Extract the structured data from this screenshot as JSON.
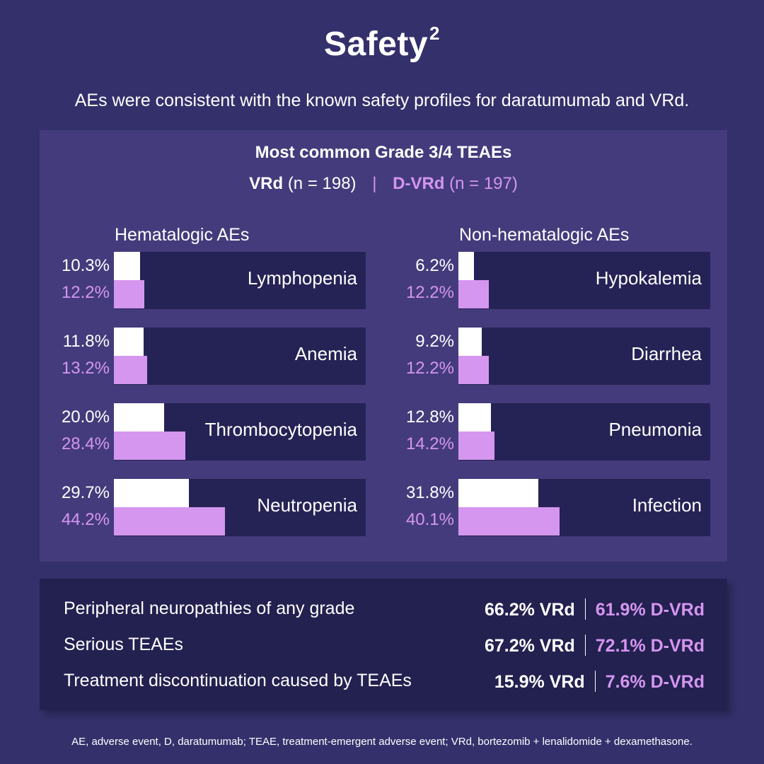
{
  "title": "Safety",
  "title_superscript": "2",
  "subtitle": "AEs were consistent with the known safety profiles for daratumumab and VRd.",
  "colors": {
    "background": "#33306b",
    "panel": "#443b7c",
    "track": "#252355",
    "vrd": "#ffffff",
    "dvrd": "#d596ef"
  },
  "chart_data": {
    "type": "bar",
    "title": "Most common Grade 3/4 TEAEs",
    "xlim": [
      0,
      100
    ],
    "legend": {
      "position": "top",
      "entries": [
        {
          "name": "VRd",
          "detail": "(n = 198)",
          "color": "#ffffff"
        },
        {
          "name": "D-VRd",
          "detail": "(n = 197)",
          "color": "#d596ef"
        }
      ]
    },
    "groups": [
      {
        "title": "Hematologic AEs",
        "categories": [
          "Lymphopenia",
          "Anemia",
          "Thrombocytopenia",
          "Neutropenia"
        ],
        "series": [
          {
            "name": "VRd",
            "values": [
              10.3,
              11.8,
              20.0,
              29.7
            ],
            "labels": [
              "10.3%",
              "11.8%",
              "20.0%",
              "29.7%"
            ]
          },
          {
            "name": "D-VRd",
            "values": [
              12.2,
              13.2,
              28.4,
              44.2
            ],
            "labels": [
              "12.2%",
              "13.2%",
              "28.4%",
              "44.2%"
            ]
          }
        ]
      },
      {
        "title": "Non-hematologic AEs",
        "categories": [
          "Hypokalemia",
          "Diarrhea",
          "Pneumonia",
          "Infection"
        ],
        "series": [
          {
            "name": "VRd",
            "values": [
              6.2,
              9.2,
              12.8,
              31.8
            ],
            "labels": [
              "6.2%",
              "9.2%",
              "12.8%",
              "31.8%"
            ]
          },
          {
            "name": "D-VRd",
            "values": [
              12.2,
              12.2,
              14.2,
              40.1
            ],
            "labels": [
              "12.2%",
              "12.2%",
              "14.2%",
              "40.1%"
            ]
          }
        ]
      }
    ]
  },
  "panel": {
    "title": "Most common Grade 3/4 TEAEs",
    "legend_vrd": "VRd",
    "legend_vrd_n": "(n = 198)",
    "legend_sep": "|",
    "legend_dvrd": "D-VRd",
    "legend_dvrd_n": "(n = 197)",
    "groups": [
      {
        "title": "Hematalogic AEs"
      },
      {
        "title": "Non-hematalogic AEs"
      }
    ]
  },
  "summary": [
    {
      "label": "Peripheral neuropathies of any grade",
      "vrd": "66.2% VRd",
      "dvrd": "61.9% D-VRd"
    },
    {
      "label": "Serious TEAEs",
      "vrd": "67.2% VRd",
      "dvrd": "72.1% D-VRd"
    },
    {
      "label": "Treatment discontinuation caused by TEAEs",
      "vrd": "15.9% VRd",
      "dvrd": "7.6% D-VRd"
    }
  ],
  "footnote": "AE, adverse event, D, daratumumab; TEAE, treatment-emergent adverse event; VRd, bortezomib + lenalidomide + dexamethasone."
}
